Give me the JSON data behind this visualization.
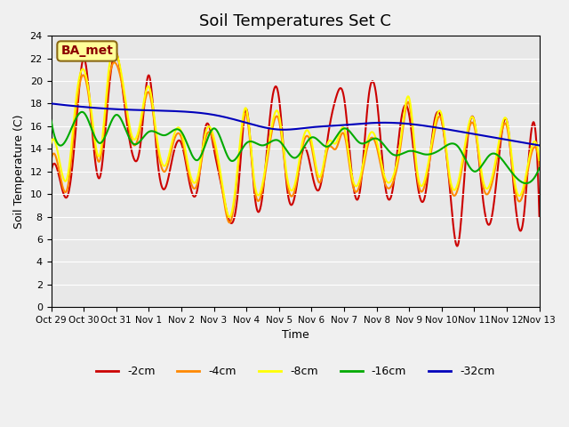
{
  "title": "Soil Temperatures Set C",
  "xlabel": "Time",
  "ylabel": "Soil Temperature (C)",
  "xlim": [
    0,
    15
  ],
  "ylim": [
    0,
    24
  ],
  "yticks": [
    0,
    2,
    4,
    6,
    8,
    10,
    12,
    14,
    16,
    18,
    20,
    22,
    24
  ],
  "xtick_labels": [
    "Oct 29",
    "Oct 30",
    "Oct 31",
    "Nov 1",
    "Nov 2",
    "Nov 3",
    "Nov 4",
    "Nov 5",
    "Nov 6",
    "Nov 7",
    "Nov 8",
    "Nov 9",
    "Nov 10",
    "Nov 11",
    "Nov 12",
    "Nov 13"
  ],
  "xtick_positions": [
    0,
    1,
    2,
    3,
    4,
    5,
    6,
    7,
    8,
    9,
    10,
    11,
    12,
    13,
    14,
    15
  ],
  "colors": {
    "-2cm": "#cc0000",
    "-4cm": "#ff8800",
    "-8cm": "#ffff00",
    "-16cm": "#00cc00",
    "-32cm": "#0000cc"
  },
  "legend_label": "BA_met",
  "bg_color": "#e8e8e8",
  "plot_bg": "#e8e8e8"
}
